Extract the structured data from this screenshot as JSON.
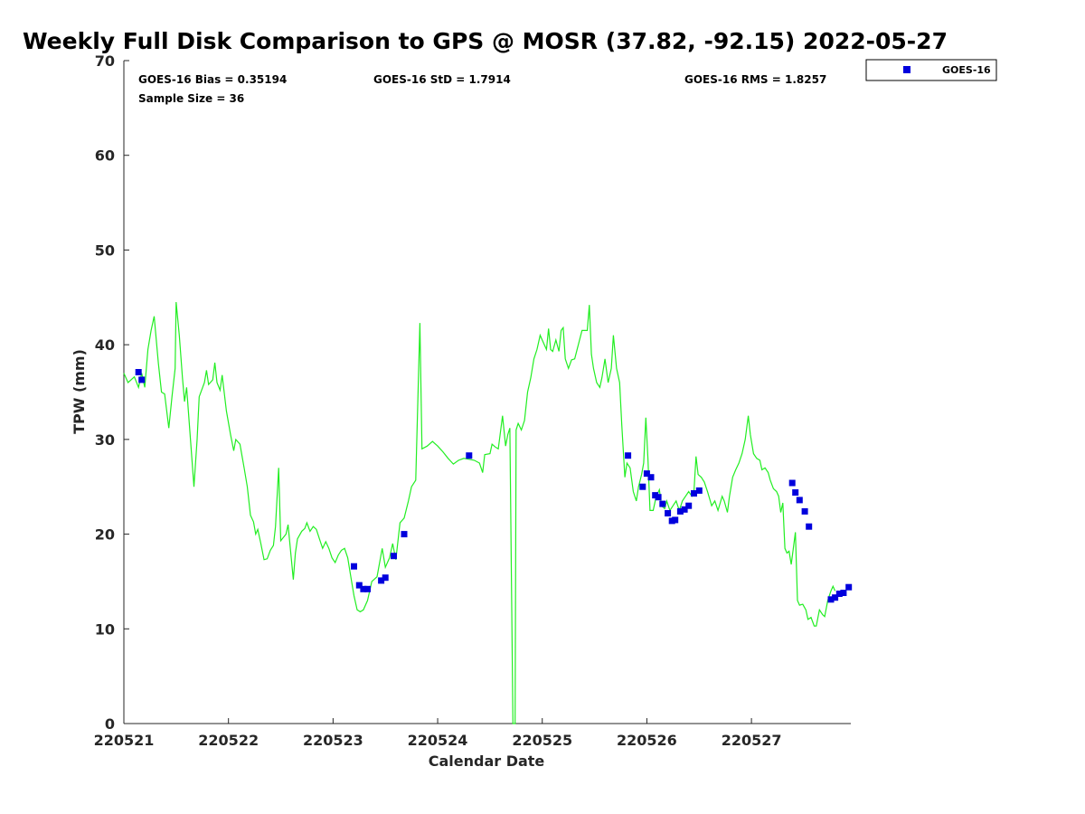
{
  "chart_data": {
    "type": "line",
    "title": "Weekly Full Disk Comparison to GPS @ MOSR (37.82, -92.15) 2022-05-27",
    "xlabel": "Calendar Date",
    "ylabel": "TPW (mm)",
    "xlim": [
      0,
      6.95
    ],
    "ylim": [
      0,
      70
    ],
    "x_ticks": [
      0,
      1,
      2,
      3,
      4,
      5,
      6
    ],
    "x_tick_labels": [
      "220521",
      "220522",
      "220523",
      "220524",
      "220525",
      "220526",
      "220527"
    ],
    "y_ticks": [
      0,
      10,
      20,
      30,
      40,
      50,
      60,
      70
    ],
    "y_tick_labels": [
      "0",
      "10",
      "20",
      "30",
      "40",
      "50",
      "60",
      "70"
    ],
    "stats": {
      "bias": "GOES-16 Bias = 0.35194",
      "std": "GOES-16 StD = 1.7914",
      "rms": "GOES-16 RMS = 1.8257",
      "sample": "Sample Size = 36"
    },
    "legend": {
      "placement": "top-right-outside",
      "entries": [
        "GOES-16"
      ]
    },
    "colors": {
      "gps": "#22ee22",
      "goes": "#0000dd",
      "axis": "#262626"
    },
    "series": [
      {
        "name": "GPS",
        "style": "line",
        "points": [
          [
            0,
            37
          ],
          [
            0.04,
            36
          ],
          [
            0.1,
            36.6
          ],
          [
            0.14,
            35.5
          ],
          [
            0.17,
            37
          ],
          [
            0.2,
            35.5
          ],
          [
            0.23,
            39.5
          ],
          [
            0.26,
            41.5
          ],
          [
            0.29,
            43
          ],
          [
            0.33,
            38
          ],
          [
            0.36,
            35
          ],
          [
            0.39,
            34.8
          ],
          [
            0.43,
            31.2
          ],
          [
            0.46,
            34.5
          ],
          [
            0.49,
            37.5
          ],
          [
            0.5,
            44.5
          ],
          [
            0.53,
            41
          ],
          [
            0.56,
            36.5
          ],
          [
            0.58,
            34
          ],
          [
            0.6,
            35.5
          ],
          [
            0.65,
            28
          ],
          [
            0.67,
            25
          ],
          [
            0.7,
            30
          ],
          [
            0.72,
            34.5
          ],
          [
            0.77,
            36
          ],
          [
            0.79,
            37.3
          ],
          [
            0.81,
            35.8
          ],
          [
            0.85,
            36.3
          ],
          [
            0.87,
            38.1
          ],
          [
            0.89,
            36
          ],
          [
            0.92,
            35.2
          ],
          [
            0.94,
            36.8
          ],
          [
            0.98,
            33
          ],
          [
            1.02,
            30.5
          ],
          [
            1.05,
            28.8
          ],
          [
            1.07,
            30
          ],
          [
            1.11,
            29.5
          ],
          [
            1.15,
            27
          ],
          [
            1.18,
            25
          ],
          [
            1.21,
            22
          ],
          [
            1.24,
            21.3
          ],
          [
            1.26,
            20
          ],
          [
            1.28,
            20.5
          ],
          [
            1.31,
            19
          ],
          [
            1.34,
            17.3
          ],
          [
            1.37,
            17.4
          ],
          [
            1.4,
            18.3
          ],
          [
            1.43,
            18.8
          ],
          [
            1.45,
            20.8
          ],
          [
            1.48,
            27
          ],
          [
            1.5,
            19.3
          ],
          [
            1.55,
            20
          ],
          [
            1.57,
            21
          ],
          [
            1.6,
            17.5
          ],
          [
            1.62,
            15.2
          ],
          [
            1.64,
            18
          ],
          [
            1.66,
            19.5
          ],
          [
            1.7,
            20.3
          ],
          [
            1.73,
            20.6
          ],
          [
            1.75,
            21.2
          ],
          [
            1.78,
            20.3
          ],
          [
            1.81,
            20.8
          ],
          [
            1.84,
            20.5
          ],
          [
            1.87,
            19.5
          ],
          [
            1.9,
            18.5
          ],
          [
            1.93,
            19.2
          ],
          [
            1.96,
            18.5
          ],
          [
            1.99,
            17.5
          ],
          [
            2.02,
            17
          ],
          [
            2.05,
            17.8
          ],
          [
            2.08,
            18.3
          ],
          [
            2.11,
            18.5
          ],
          [
            2.14,
            17.5
          ],
          [
            2.17,
            15.5
          ],
          [
            2.2,
            13.5
          ],
          [
            2.23,
            12
          ],
          [
            2.26,
            11.8
          ],
          [
            2.29,
            12
          ],
          [
            2.33,
            13
          ],
          [
            2.37,
            15
          ],
          [
            2.42,
            15.5
          ],
          [
            2.47,
            18.5
          ],
          [
            2.5,
            16.5
          ],
          [
            2.54,
            17.5
          ],
          [
            2.57,
            19
          ],
          [
            2.6,
            17.3
          ],
          [
            2.64,
            21.2
          ],
          [
            2.68,
            21.7
          ],
          [
            2.72,
            23.5
          ],
          [
            2.75,
            25
          ],
          [
            2.79,
            25.7
          ],
          [
            2.83,
            42.3
          ],
          [
            2.85,
            29
          ],
          [
            2.9,
            29.3
          ],
          [
            2.95,
            29.8
          ],
          [
            3.0,
            29.3
          ],
          [
            3.05,
            28.7
          ],
          [
            3.1,
            28
          ],
          [
            3.15,
            27.4
          ],
          [
            3.2,
            27.8
          ],
          [
            3.25,
            28
          ],
          [
            3.3,
            27.9
          ],
          [
            3.35,
            27.8
          ],
          [
            3.4,
            27.5
          ],
          [
            3.43,
            26.5
          ],
          [
            3.45,
            28.4
          ],
          [
            3.5,
            28.5
          ],
          [
            3.52,
            29.5
          ],
          [
            3.55,
            29.2
          ],
          [
            3.58,
            29
          ],
          [
            3.62,
            32.5
          ],
          [
            3.65,
            29.3
          ],
          [
            3.67,
            30.5
          ],
          [
            3.69,
            31.2
          ],
          [
            3.72,
            0
          ],
          [
            3.74,
            0
          ],
          [
            3.75,
            31
          ],
          [
            3.77,
            31.7
          ],
          [
            3.8,
            31
          ],
          [
            3.83,
            32
          ],
          [
            3.86,
            35
          ],
          [
            3.89,
            36.5
          ],
          [
            3.92,
            38.5
          ],
          [
            3.95,
            39.5
          ],
          [
            3.98,
            41
          ],
          [
            4.02,
            40
          ],
          [
            4.04,
            39.5
          ],
          [
            4.06,
            41.7
          ],
          [
            4.08,
            39.5
          ],
          [
            4.1,
            39.3
          ],
          [
            4.13,
            40.5
          ],
          [
            4.16,
            39.3
          ],
          [
            4.18,
            41.5
          ],
          [
            4.2,
            41.8
          ],
          [
            4.22,
            38.5
          ],
          [
            4.25,
            37.5
          ],
          [
            4.28,
            38.4
          ],
          [
            4.31,
            38.5
          ],
          [
            4.34,
            39.8
          ],
          [
            4.38,
            41.5
          ],
          [
            4.41,
            41.5
          ],
          [
            4.43,
            41.5
          ],
          [
            4.45,
            44.2
          ],
          [
            4.47,
            39
          ],
          [
            4.49,
            37.5
          ],
          [
            4.52,
            36
          ],
          [
            4.55,
            35.5
          ],
          [
            4.57,
            36.5
          ],
          [
            4.6,
            38.5
          ],
          [
            4.63,
            36
          ],
          [
            4.66,
            37.5
          ],
          [
            4.68,
            41
          ],
          [
            4.71,
            37.5
          ],
          [
            4.74,
            36
          ],
          [
            4.76,
            31.5
          ],
          [
            4.79,
            26
          ],
          [
            4.81,
            27.5
          ],
          [
            4.84,
            27
          ],
          [
            4.87,
            24.5
          ],
          [
            4.9,
            23.5
          ],
          [
            4.92,
            25
          ],
          [
            4.95,
            26.3
          ],
          [
            4.97,
            27.5
          ],
          [
            4.99,
            32.3
          ],
          [
            5.01,
            28
          ],
          [
            5.03,
            22.5
          ],
          [
            5.06,
            22.5
          ],
          [
            5.09,
            24
          ],
          [
            5.12,
            24.7
          ],
          [
            5.14,
            23
          ],
          [
            5.17,
            22.7
          ],
          [
            5.19,
            23.5
          ],
          [
            5.22,
            22.5
          ],
          [
            5.25,
            23
          ],
          [
            5.28,
            23.5
          ],
          [
            5.31,
            22.5
          ],
          [
            5.34,
            23.5
          ],
          [
            5.37,
            24
          ],
          [
            5.4,
            24.5
          ],
          [
            5.43,
            24
          ],
          [
            5.45,
            24.5
          ],
          [
            5.47,
            28.2
          ],
          [
            5.49,
            26.3
          ],
          [
            5.52,
            26
          ],
          [
            5.55,
            25.5
          ],
          [
            5.58,
            24.5
          ],
          [
            5.62,
            23
          ],
          [
            5.65,
            23.5
          ],
          [
            5.68,
            22.5
          ],
          [
            5.72,
            24
          ],
          [
            5.74,
            23.5
          ],
          [
            5.77,
            22.3
          ],
          [
            5.79,
            24
          ],
          [
            5.82,
            26
          ],
          [
            5.85,
            26.8
          ],
          [
            5.88,
            27.5
          ],
          [
            5.91,
            28.5
          ],
          [
            5.94,
            30
          ],
          [
            5.97,
            32.5
          ],
          [
            5.99,
            30.5
          ],
          [
            6.02,
            28.5
          ],
          [
            6.05,
            28
          ],
          [
            6.08,
            27.8
          ],
          [
            6.1,
            26.8
          ],
          [
            6.13,
            27
          ],
          [
            6.16,
            26.5
          ],
          [
            6.18,
            25.7
          ],
          [
            6.21,
            24.8
          ],
          [
            6.24,
            24.5
          ],
          [
            6.26,
            24
          ],
          [
            6.28,
            22.3
          ],
          [
            6.3,
            23.3
          ],
          [
            6.32,
            18.5
          ],
          [
            6.34,
            18
          ],
          [
            6.36,
            18.2
          ],
          [
            6.38,
            16.8
          ],
          [
            6.4,
            18.5
          ],
          [
            6.42,
            20.2
          ],
          [
            6.44,
            13
          ],
          [
            6.46,
            12.5
          ],
          [
            6.49,
            12.6
          ],
          [
            6.52,
            12
          ],
          [
            6.54,
            11
          ],
          [
            6.57,
            11.2
          ],
          [
            6.6,
            10.3
          ],
          [
            6.62,
            10.3
          ],
          [
            6.65,
            12
          ],
          [
            6.68,
            11.5
          ],
          [
            6.7,
            11.3
          ],
          [
            6.73,
            13
          ],
          [
            6.76,
            14
          ],
          [
            6.78,
            14.5
          ],
          [
            6.8,
            14
          ]
        ]
      },
      {
        "name": "GOES-16",
        "style": "marker",
        "points": [
          [
            0.14,
            37.1
          ],
          [
            0.17,
            36.3
          ],
          [
            2.2,
            16.6
          ],
          [
            2.25,
            14.6
          ],
          [
            2.29,
            14.2
          ],
          [
            2.33,
            14.2
          ],
          [
            2.46,
            15.1
          ],
          [
            2.5,
            15.4
          ],
          [
            2.58,
            17.7
          ],
          [
            2.68,
            20
          ],
          [
            3.3,
            28.3
          ],
          [
            4.82,
            28.3
          ],
          [
            4.96,
            25
          ],
          [
            5.0,
            26.4
          ],
          [
            5.04,
            26
          ],
          [
            5.08,
            24.1
          ],
          [
            5.11,
            23.9
          ],
          [
            5.15,
            23.2
          ],
          [
            5.2,
            22.2
          ],
          [
            5.24,
            21.4
          ],
          [
            5.27,
            21.5
          ],
          [
            5.32,
            22.4
          ],
          [
            5.36,
            22.6
          ],
          [
            5.4,
            23
          ],
          [
            5.45,
            24.3
          ],
          [
            5.5,
            24.6
          ],
          [
            6.39,
            25.4
          ],
          [
            6.42,
            24.4
          ],
          [
            6.46,
            23.6
          ],
          [
            6.51,
            22.4
          ],
          [
            6.55,
            20.8
          ],
          [
            6.76,
            13.1
          ],
          [
            6.8,
            13.3
          ],
          [
            6.84,
            13.7
          ],
          [
            6.88,
            13.8
          ],
          [
            6.93,
            14.4
          ]
        ]
      }
    ]
  }
}
